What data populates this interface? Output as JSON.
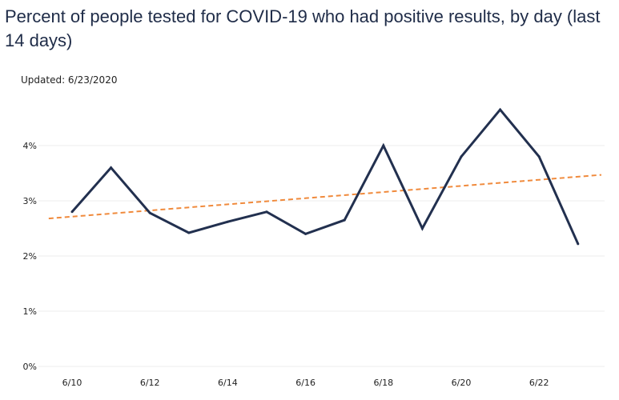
{
  "title": "Percent of people tested for COVID-19 who had positive results, by day (last 14 days)",
  "updated": "Updated: 6/23/2020",
  "colors": {
    "series": "#22304f",
    "trend": "#f08a3c",
    "grid": "#ececec"
  },
  "chart_data": {
    "type": "line",
    "title": "Percent of people tested for COVID-19 who had positive results, by day (last 14 days)",
    "xlabel": "",
    "ylabel": "",
    "x": [
      "6/10",
      "6/11",
      "6/12",
      "6/13",
      "6/14",
      "6/15",
      "6/16",
      "6/17",
      "6/18",
      "6/19",
      "6/20",
      "6/21",
      "6/22",
      "6/23"
    ],
    "x_tick_labels": [
      "6/10",
      "6/12",
      "6/14",
      "6/16",
      "6/18",
      "6/20",
      "6/22"
    ],
    "y_ticks": [
      0,
      1,
      2,
      3,
      4
    ],
    "y_tick_labels": [
      "0%",
      "1%",
      "2%",
      "3%",
      "4%"
    ],
    "ylim": [
      0,
      4.9
    ],
    "grid": true,
    "series": [
      {
        "values": [
          2.8,
          3.6,
          2.78,
          2.42,
          2.62,
          2.8,
          2.4,
          2.65,
          4.0,
          2.5,
          3.8,
          4.65,
          3.8,
          2.22
        ]
      }
    ],
    "trendline": {
      "style": "dashed",
      "start": [
        -0.6,
        2.68
      ],
      "end": [
        13.6,
        3.47
      ]
    }
  }
}
